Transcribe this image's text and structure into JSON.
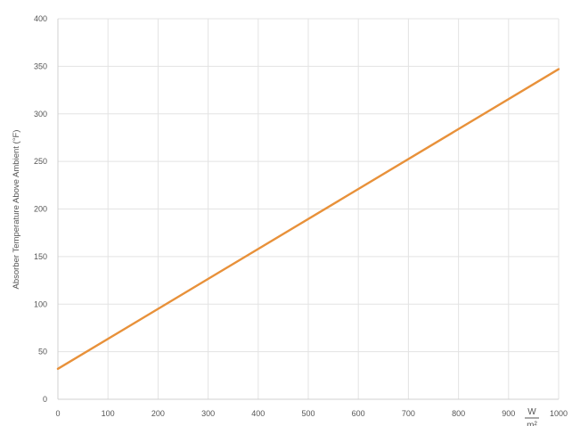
{
  "chart_data": {
    "type": "line",
    "title": "",
    "xlabel": "",
    "ylabel": "Absorber Temperature Above Ambient (°F)",
    "x_unit": {
      "numerator": "W",
      "denominator": "m²"
    },
    "xlim": [
      0,
      1000
    ],
    "ylim": [
      0,
      400
    ],
    "x_ticks": [
      "0",
      "100",
      "200",
      "300",
      "400",
      "500",
      "600",
      "700",
      "800",
      "900",
      "1000"
    ],
    "y_ticks": [
      "0",
      "50",
      "100",
      "150",
      "200",
      "250",
      "300",
      "350",
      "400"
    ],
    "grid": true,
    "legend": "none",
    "series": [
      {
        "color": "#e8913a",
        "x": [
          0,
          1000
        ],
        "y": [
          32,
          347
        ]
      }
    ]
  }
}
